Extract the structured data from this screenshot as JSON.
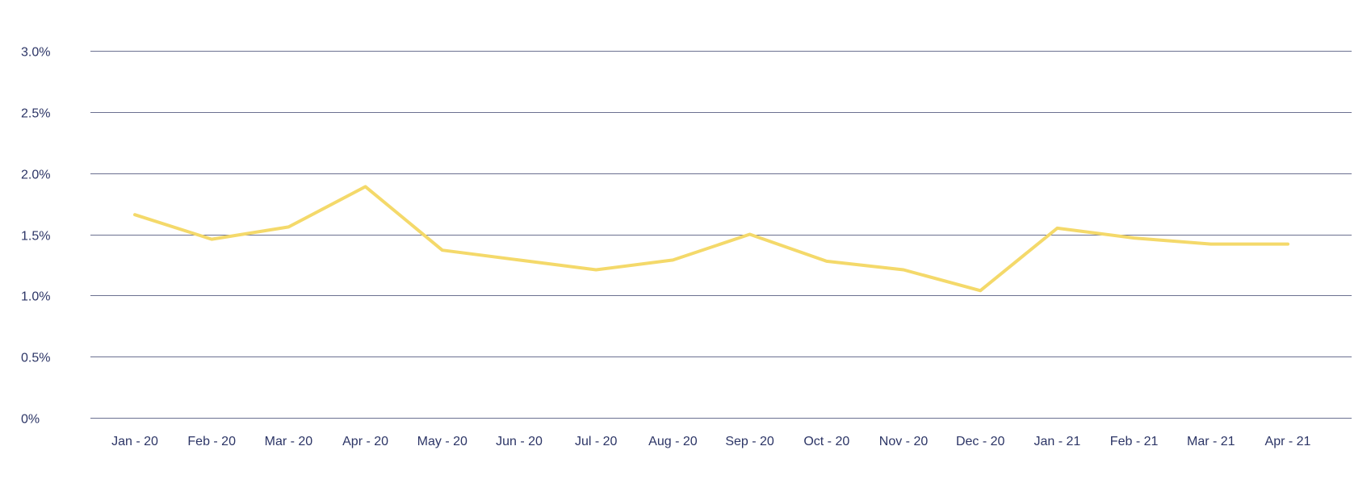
{
  "chart_data": {
    "type": "line",
    "title": "",
    "xlabel": "",
    "ylabel": "",
    "categories": [
      "Jan - 20",
      "Feb - 20",
      "Mar - 20",
      "Apr - 20",
      "May - 20",
      "Jun - 20",
      "Jul - 20",
      "Aug - 20",
      "Sep - 20",
      "Oct - 20",
      "Nov - 20",
      "Dec - 20",
      "Jan - 21",
      "Feb - 21",
      "Mar - 21",
      "Apr - 21"
    ],
    "series": [
      {
        "values": [
          1.66,
          1.46,
          1.56,
          1.89,
          1.37,
          1.29,
          1.21,
          1.29,
          1.5,
          1.28,
          1.21,
          1.04,
          1.55,
          1.47,
          1.42,
          1.42
        ],
        "color": "#f4d96a"
      }
    ],
    "ylim": [
      0,
      3.0
    ],
    "yticks": [
      {
        "value": 0,
        "label": "0%"
      },
      {
        "value": 0.5,
        "label": "0.5%"
      },
      {
        "value": 1.0,
        "label": "1.0%"
      },
      {
        "value": 1.5,
        "label": "1.5%"
      },
      {
        "value": 2.0,
        "label": "2.0%"
      },
      {
        "value": 2.5,
        "label": "2.5%"
      },
      {
        "value": 3.0,
        "label": "3.0%"
      }
    ],
    "grid": true,
    "gridline_color": "#6b7090",
    "text_color": "#2c3566",
    "legend": "none"
  }
}
